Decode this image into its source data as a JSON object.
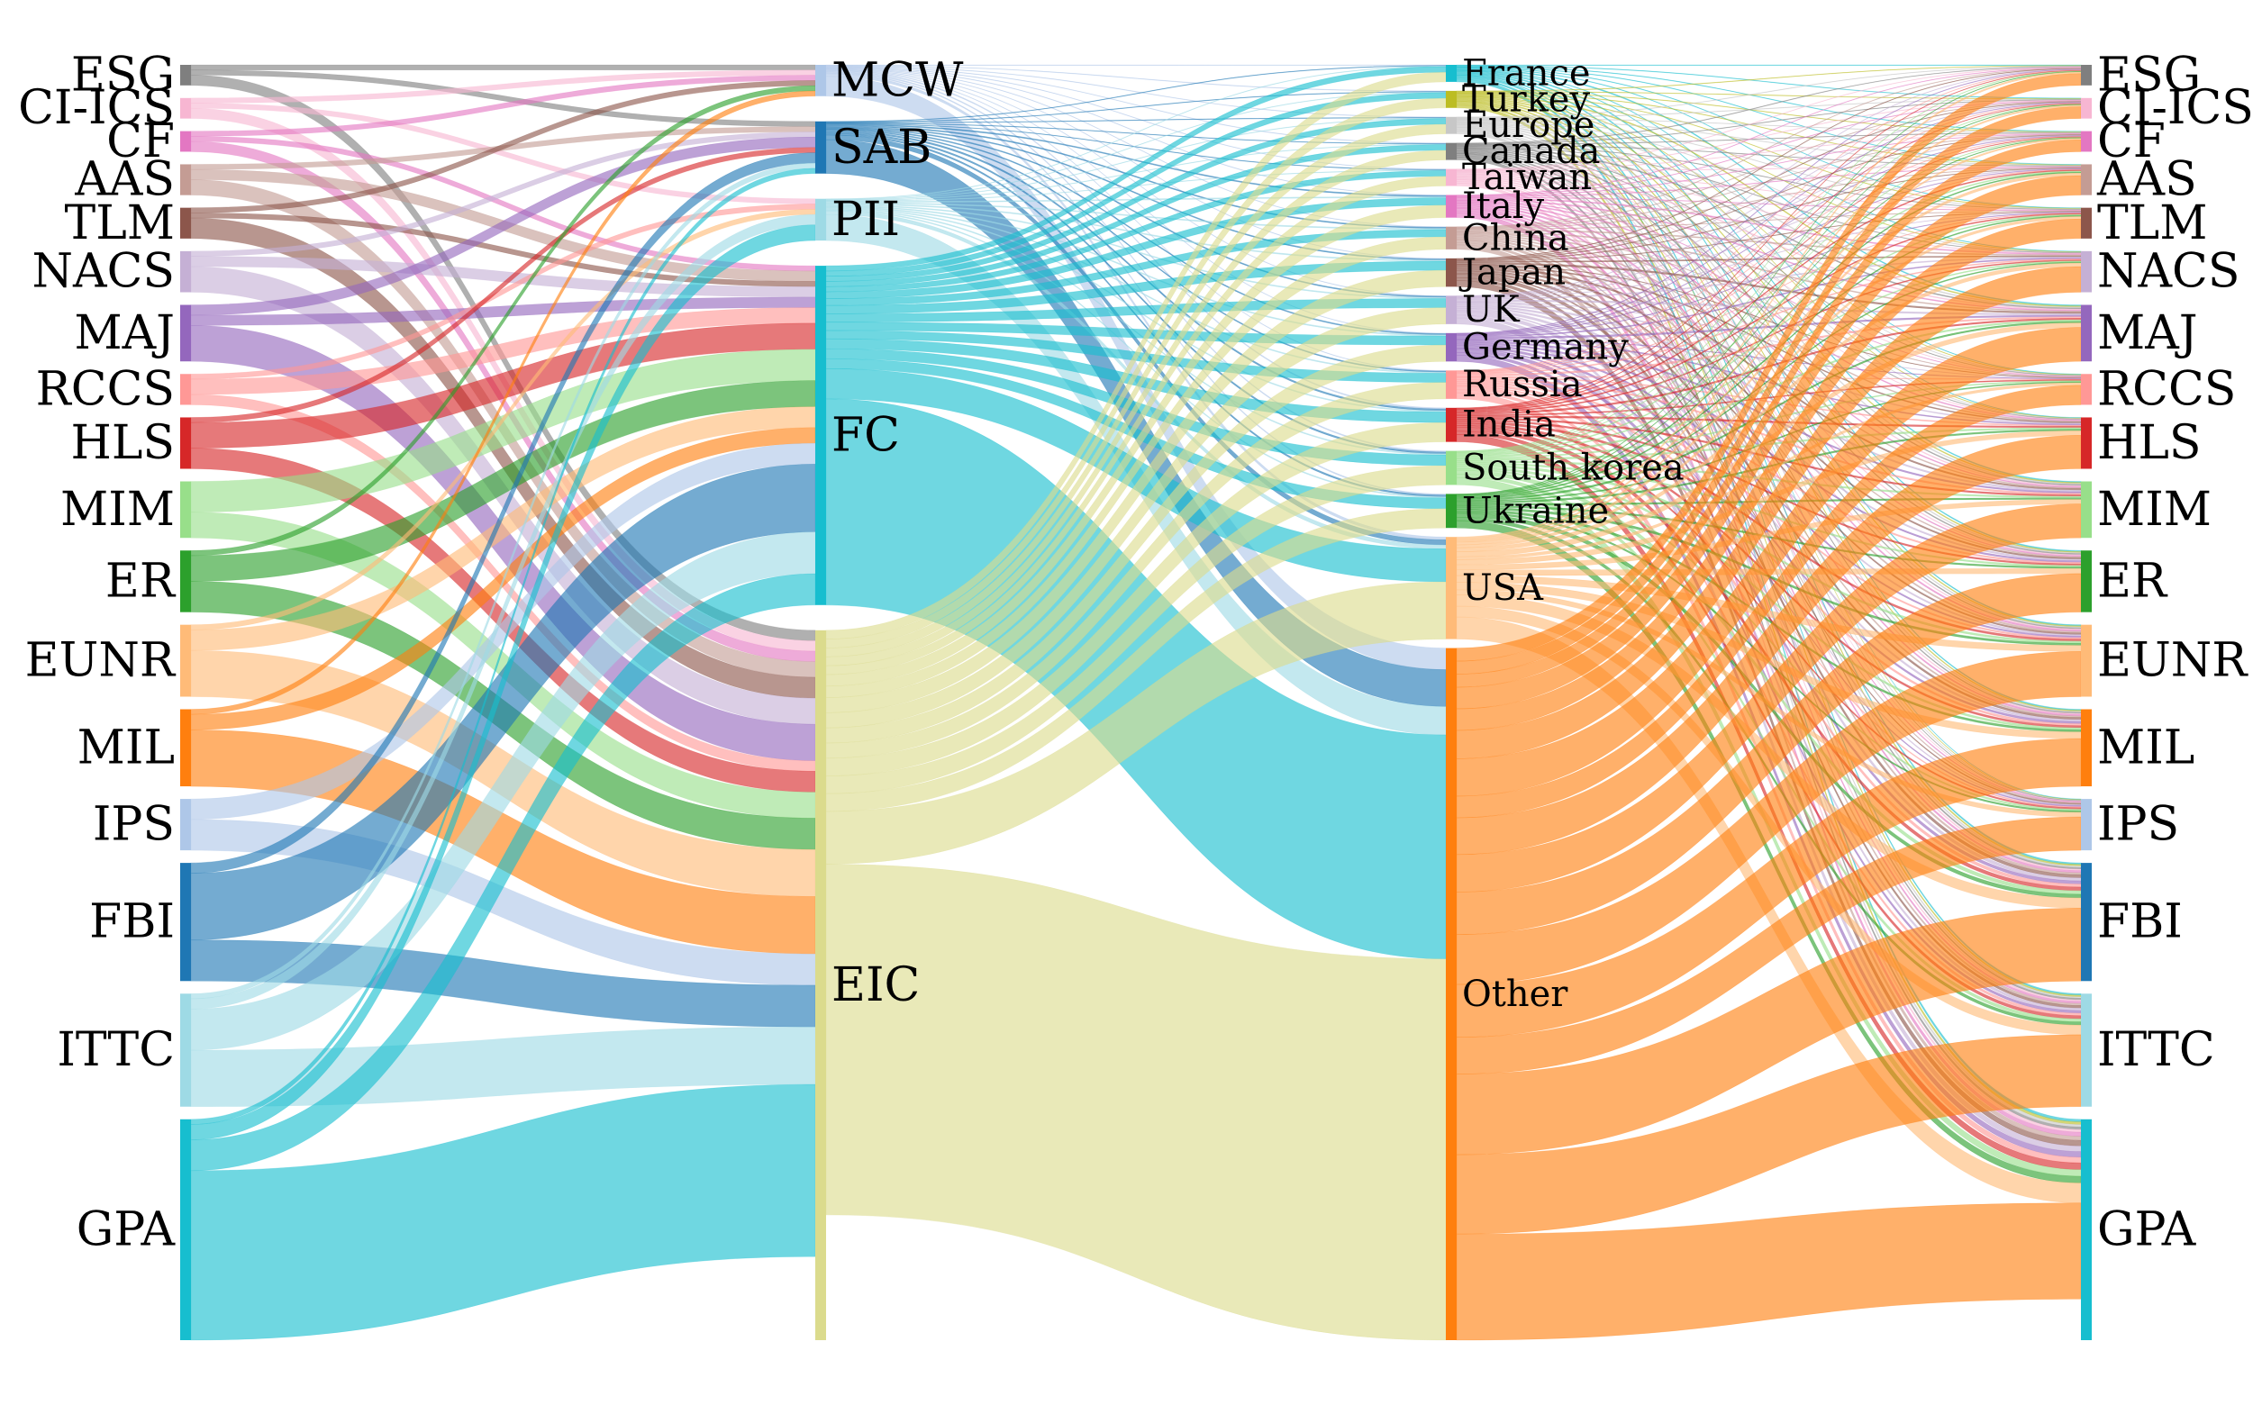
{
  "chart_data": {
    "type": "sankey",
    "title": "",
    "columns": [
      {
        "name": "",
        "nodes": [
          "ESG",
          "CI-ICS",
          "CF",
          "AAS",
          "TLM",
          "NACS",
          "MAJ",
          "RCCS",
          "HLS",
          "MIM",
          "ER",
          "EUNR",
          "MIL",
          "IPS",
          "FBI",
          "ITTC",
          "GPA"
        ],
        "values": [
          4,
          4,
          4,
          6,
          6,
          8,
          11,
          6,
          10,
          11,
          12,
          14,
          15,
          10,
          23,
          22,
          43
        ]
      },
      {
        "name": "",
        "nodes": [
          "MCW",
          "SAB",
          "PII",
          "FC",
          "EIC"
        ],
        "values": [
          6,
          10,
          8,
          65,
          136
        ]
      },
      {
        "name": "",
        "nodes": [
          "France",
          "Turkey",
          "Europe",
          "Canada",
          "Taiwan",
          "Italy",
          "China",
          "Japan",
          "UK",
          "Germany",
          "Russia",
          "India",
          "South korea",
          "Ukraine",
          "USA",
          "Other"
        ],
        "values": [
          3,
          3,
          3,
          3,
          3,
          4,
          4,
          5,
          5,
          5,
          5,
          6,
          6,
          6,
          18,
          122
        ]
      },
      {
        "name": "",
        "nodes": [
          "ESG",
          "CI-ICS",
          "CF",
          "AAS",
          "TLM",
          "NACS",
          "MAJ",
          "RCCS",
          "HLS",
          "MIM",
          "ER",
          "EUNR",
          "MIL",
          "IPS",
          "FBI",
          "ITTC",
          "GPA"
        ],
        "values": [
          4,
          4,
          4,
          6,
          6,
          8,
          11,
          6,
          10,
          11,
          12,
          14,
          15,
          10,
          23,
          22,
          43
        ]
      }
    ],
    "node_colors": {
      "ESG": "#7f7f7f",
      "CI-ICS": "#f7b6d2",
      "CF": "#e377c2",
      "AAS": "#c49c94",
      "TLM": "#8c564b",
      "NACS": "#c5b0d5",
      "MAJ": "#9467bd",
      "RCCS": "#ff9896",
      "HLS": "#d62728",
      "MIM": "#98df8a",
      "ER": "#2ca02c",
      "EUNR": "#ffbb78",
      "MIL": "#ff7f0e",
      "IPS": "#aec7e8",
      "FBI": "#1f77b4",
      "ITTC": "#9edae5",
      "GPA": "#17becf",
      "MCW": "#aec7e8",
      "SAB": "#1f77b4",
      "PII": "#9edae5",
      "FC": "#17becf",
      "EIC": "#dbdb8d",
      "France": "#17becf",
      "Turkey": "#bcbd22",
      "Europe": "#c7c7c7",
      "Canada": "#7f7f7f",
      "Taiwan": "#f7b6d2",
      "Italy": "#e377c2",
      "China": "#c49c94",
      "Japan": "#8c564b",
      "UK": "#c5b0d5",
      "Germany": "#9467bd",
      "Russia": "#ff9896",
      "India": "#d62728",
      "South korea": "#98df8a",
      "Ukraine": "#2ca02c",
      "USA": "#ffbb78",
      "Other": "#ff7f0e"
    },
    "flows_stage1": [
      [
        "ESG",
        "MCW",
        1
      ],
      [
        "ESG",
        "SAB",
        1
      ],
      [
        "ESG",
        "EIC",
        2
      ],
      [
        "CI-ICS",
        "MCW",
        1
      ],
      [
        "CI-ICS",
        "PII",
        1
      ],
      [
        "CI-ICS",
        "EIC",
        2
      ],
      [
        "CF",
        "MCW",
        1
      ],
      [
        "CF",
        "FC",
        1
      ],
      [
        "CF",
        "EIC",
        2
      ],
      [
        "AAS",
        "SAB",
        1
      ],
      [
        "AAS",
        "FC",
        2
      ],
      [
        "AAS",
        "EIC",
        3
      ],
      [
        "TLM",
        "MCW",
        1
      ],
      [
        "TLM",
        "FC",
        1
      ],
      [
        "TLM",
        "EIC",
        4
      ],
      [
        "NACS",
        "SAB",
        1
      ],
      [
        "NACS",
        "FC",
        2
      ],
      [
        "NACS",
        "EIC",
        5
      ],
      [
        "MAJ",
        "SAB",
        2
      ],
      [
        "MAJ",
        "FC",
        2
      ],
      [
        "MAJ",
        "EIC",
        7
      ],
      [
        "RCCS",
        "PII",
        1
      ],
      [
        "RCCS",
        "FC",
        3
      ],
      [
        "RCCS",
        "EIC",
        2
      ],
      [
        "HLS",
        "SAB",
        1
      ],
      [
        "HLS",
        "FC",
        5
      ],
      [
        "HLS",
        "EIC",
        4
      ],
      [
        "MIM",
        "FC",
        6
      ],
      [
        "MIM",
        "EIC",
        5
      ],
      [
        "ER",
        "MCW",
        1
      ],
      [
        "ER",
        "FC",
        5
      ],
      [
        "ER",
        "EIC",
        6
      ],
      [
        "EUNR",
        "PII",
        1
      ],
      [
        "EUNR",
        "FC",
        4
      ],
      [
        "EUNR",
        "EIC",
        9
      ],
      [
        "MIL",
        "MCW",
        1
      ],
      [
        "MIL",
        "FC",
        3
      ],
      [
        "MIL",
        "EIC",
        11
      ],
      [
        "IPS",
        "FC",
        4
      ],
      [
        "IPS",
        "EIC",
        6
      ],
      [
        "FBI",
        "SAB",
        2
      ],
      [
        "FBI",
        "FC",
        13
      ],
      [
        "FBI",
        "EIC",
        8
      ],
      [
        "ITTC",
        "SAB",
        1
      ],
      [
        "ITTC",
        "PII",
        2
      ],
      [
        "ITTC",
        "FC",
        8
      ],
      [
        "ITTC",
        "EIC",
        11
      ],
      [
        "GPA",
        "SAB",
        1
      ],
      [
        "GPA",
        "PII",
        3
      ],
      [
        "GPA",
        "FC",
        6
      ],
      [
        "GPA",
        "EIC",
        33
      ]
    ]
  }
}
